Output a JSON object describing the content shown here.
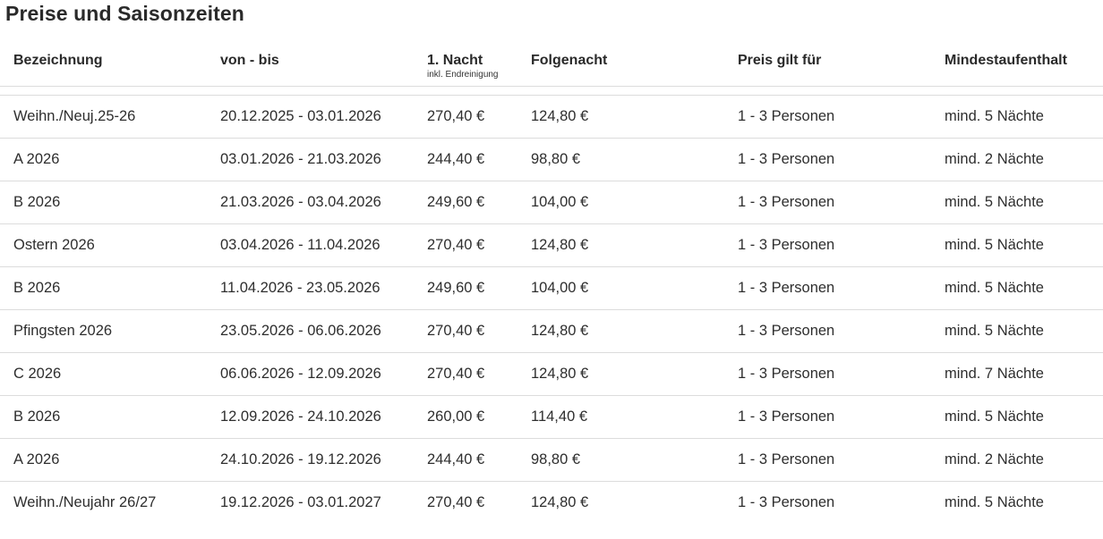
{
  "page": {
    "title": "Preise und Saisonzeiten"
  },
  "table": {
    "headers": {
      "bezeichnung": "Bezeichnung",
      "von_bis": "von - bis",
      "erste_nacht": "1. Nacht",
      "erste_nacht_sub": "inkl. Endreinigung",
      "folgenacht": "Folgenacht",
      "preis_gilt_fuer": "Preis gilt für",
      "mindestaufenthalt": "Mindestaufenthalt"
    },
    "rows": [
      {
        "bezeichnung": "Weihn./Neuj.25-26",
        "von_bis": "20.12.2025 - 03.01.2026",
        "erste_nacht": "270,40 €",
        "folgenacht": "124,80 €",
        "preis_gilt_fuer": "1 - 3 Personen",
        "mindestaufenthalt": "mind. 5 Nächte"
      },
      {
        "bezeichnung": "A 2026",
        "von_bis": "03.01.2026 - 21.03.2026",
        "erste_nacht": "244,40 €",
        "folgenacht": "98,80 €",
        "preis_gilt_fuer": "1 - 3 Personen",
        "mindestaufenthalt": "mind. 2 Nächte"
      },
      {
        "bezeichnung": "B 2026",
        "von_bis": "21.03.2026 - 03.04.2026",
        "erste_nacht": "249,60 €",
        "folgenacht": "104,00 €",
        "preis_gilt_fuer": "1 - 3 Personen",
        "mindestaufenthalt": "mind. 5 Nächte"
      },
      {
        "bezeichnung": "Ostern 2026",
        "von_bis": "03.04.2026 - 11.04.2026",
        "erste_nacht": "270,40 €",
        "folgenacht": "124,80 €",
        "preis_gilt_fuer": "1 - 3 Personen",
        "mindestaufenthalt": "mind. 5 Nächte"
      },
      {
        "bezeichnung": "B 2026",
        "von_bis": "11.04.2026 - 23.05.2026",
        "erste_nacht": "249,60 €",
        "folgenacht": "104,00 €",
        "preis_gilt_fuer": "1 - 3 Personen",
        "mindestaufenthalt": "mind. 5 Nächte"
      },
      {
        "bezeichnung": "Pfingsten 2026",
        "von_bis": "23.05.2026 - 06.06.2026",
        "erste_nacht": "270,40 €",
        "folgenacht": "124,80 €",
        "preis_gilt_fuer": "1 - 3 Personen",
        "mindestaufenthalt": "mind. 5 Nächte"
      },
      {
        "bezeichnung": "C 2026",
        "von_bis": "06.06.2026 - 12.09.2026",
        "erste_nacht": "270,40 €",
        "folgenacht": "124,80 €",
        "preis_gilt_fuer": "1 - 3 Personen",
        "mindestaufenthalt": "mind. 7 Nächte"
      },
      {
        "bezeichnung": "B 2026",
        "von_bis": "12.09.2026 - 24.10.2026",
        "erste_nacht": "260,00 €",
        "folgenacht": "114,40 €",
        "preis_gilt_fuer": "1 - 3 Personen",
        "mindestaufenthalt": "mind. 5 Nächte"
      },
      {
        "bezeichnung": "A 2026",
        "von_bis": "24.10.2026 - 19.12.2026",
        "erste_nacht": "244,40 €",
        "folgenacht": "98,80 €",
        "preis_gilt_fuer": "1 - 3 Personen",
        "mindestaufenthalt": "mind. 2 Nächte"
      },
      {
        "bezeichnung": "Weihn./Neujahr 26/27",
        "von_bis": "19.12.2026 - 03.01.2027",
        "erste_nacht": "270,40 €",
        "folgenacht": "124,80 €",
        "preis_gilt_fuer": "1 - 3 Personen",
        "mindestaufenthalt": "mind. 5 Nächte"
      }
    ]
  }
}
